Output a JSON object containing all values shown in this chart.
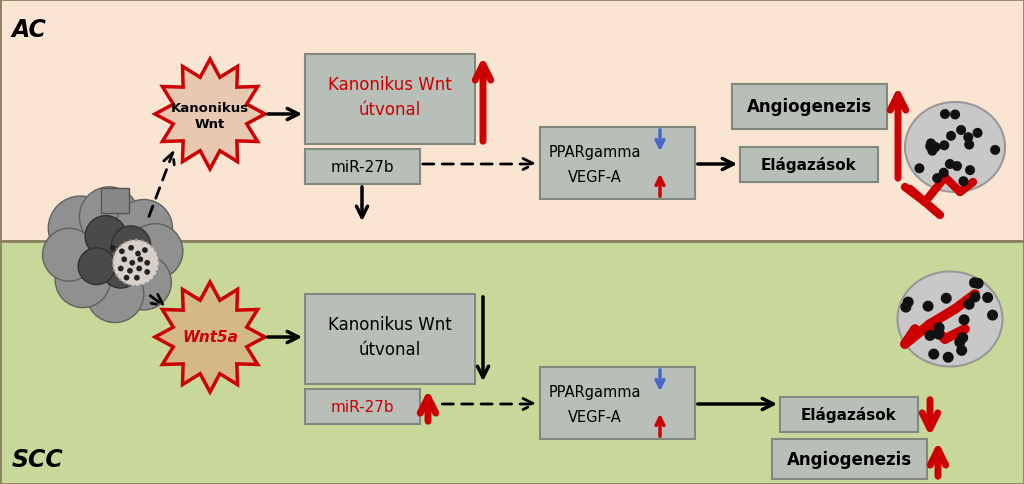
{
  "bg_top": "#FAE5D3",
  "bg_bottom": "#C8D89A",
  "bg_border": "#8B8060",
  "red": "#CC0000",
  "blue": "#4466CC",
  "black": "#111111",
  "gray_box": "#B8BEB8",
  "gray_box_edge": "#808880",
  "top_wnt_label1": "Kanonikus Wnt",
  "top_wnt_label2": "útvonal",
  "top_mir_text": "miR-27b",
  "top_ppar_text": "PPARgamma",
  "top_vegf_text": "VEGF-A",
  "top_elaz_text": "Elágazások",
  "top_angio_text": "Angiogenezis",
  "top_spike_label1": "Kanonikus",
  "top_spike_label2": "Wnt",
  "bot_wnt_label1": "Kanonikus Wnt",
  "bot_wnt_label2": "útvonal",
  "bot_mir_text": "miR-27b",
  "bot_ppar_text": "PPARgamma",
  "bot_vegf_text": "VEGF-A",
  "bot_elaz_text": "Elágazások",
  "bot_angio_text": "Angiogenezis",
  "bot_spike_label": "Wnt5a",
  "label_ac": "AC",
  "label_scc": "SCC",
  "spike_fill_top": "#E8C8B0",
  "spike_fill_bot": "#D4B888"
}
